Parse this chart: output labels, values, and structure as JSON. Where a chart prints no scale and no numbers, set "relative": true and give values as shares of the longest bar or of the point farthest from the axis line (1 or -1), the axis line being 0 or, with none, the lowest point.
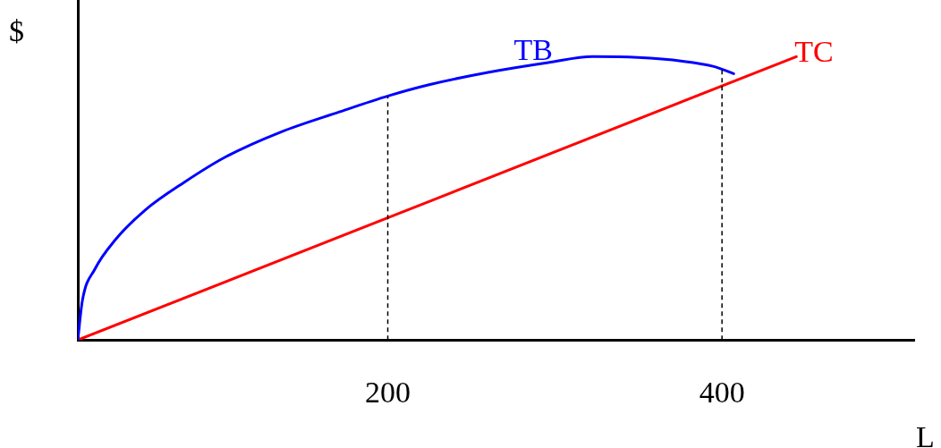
{
  "chart_data": {
    "type": "line",
    "xlabel": "L",
    "ylabel": "$",
    "relative": true,
    "xlim": [
      14.5,
      515
    ],
    "xticks": [
      200,
      400
    ],
    "grid": false,
    "legend": false,
    "marker": "none",
    "line_style": "solid",
    "series": [
      {
        "name": "TB",
        "color": "#0000ff",
        "x": [
          14.5,
          17.2,
          24.7,
          37.0,
          54.7,
          78.3,
          102.9,
          135.1,
          171.0,
          200.5,
          224.7,
          260.6,
          296.0,
          322.8,
          349.6,
          376.4,
          394.6,
          407.0
        ],
        "values": [
          0,
          0.138,
          0.25,
          0.354,
          0.458,
          0.557,
          0.646,
          0.732,
          0.805,
          0.862,
          0.901,
          0.945,
          0.979,
          1.0,
          0.997,
          0.984,
          0.966,
          0.94
        ]
      },
      {
        "name": "TC",
        "color": "#ff0000",
        "x": [
          14.5,
          444.5
        ],
        "values": [
          0,
          1.0
        ]
      }
    ],
    "ref_lines": [
      {
        "axis": "x",
        "value": 200,
        "line_style": "dashed",
        "color": "#000000"
      },
      {
        "axis": "x",
        "value": 400,
        "line_style": "dashed",
        "color": "#000000"
      }
    ]
  }
}
